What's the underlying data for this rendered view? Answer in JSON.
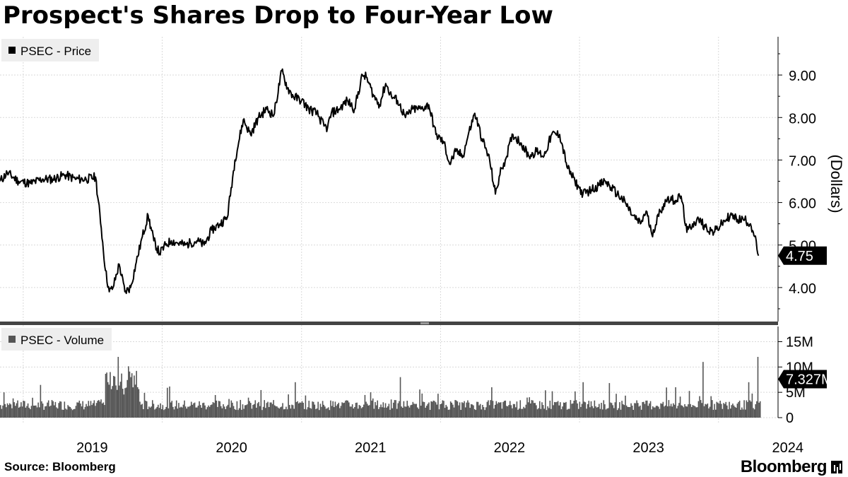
{
  "title": "Prospect's Shares Drop to Four-Year Low",
  "source": "Source: Bloomberg",
  "brand": "Bloomberg",
  "colors": {
    "price_line": "#000000",
    "volume_bars": "#555555",
    "grid": "#d9d9d9",
    "legend_bg": "#eeeeee"
  },
  "chart_data": [
    {
      "type": "line",
      "legend": "PSEC - Price",
      "ylabel": "(Dollars)",
      "ylim": [
        3.2,
        9.9
      ],
      "yticks": [
        4,
        5,
        6,
        7,
        8,
        9
      ],
      "ytick_labels": [
        "4.00",
        "5.00",
        "6.00",
        "7.00",
        "8.00",
        "9.00"
      ],
      "last_value_label": "4.75",
      "last_value": 4.75,
      "grid": true,
      "series": [
        {
          "x": [
            "2018-11-01",
            "2018-11-20",
            "2018-12-20",
            "2019-01-20",
            "2019-02-20",
            "2019-03-20",
            "2019-04-20",
            "2019-05-20",
            "2019-06-15",
            "2019-07-10",
            "2019-07-25",
            "2019-08-05",
            "2019-08-15",
            "2019-08-25",
            "2019-09-10",
            "2019-09-25",
            "2019-10-10",
            "2019-10-25",
            "2019-11-10",
            "2019-11-25",
            "2019-12-10",
            "2019-12-25",
            "2020-01-10",
            "2020-01-25",
            "2020-02-10",
            "2020-03-01",
            "2020-03-15",
            "2020-04-01",
            "2020-04-20",
            "2020-05-10",
            "2020-06-01",
            "2020-06-20",
            "2020-07-10",
            "2020-08-01",
            "2020-08-20",
            "2020-09-10",
            "2020-10-01",
            "2020-10-20",
            "2020-11-10",
            "2020-11-25",
            "2020-12-10",
            "2021-01-01",
            "2021-01-20",
            "2021-02-10",
            "2021-03-01",
            "2021-03-10",
            "2021-03-20",
            "2021-04-10",
            "2021-05-01",
            "2021-05-20",
            "2021-06-10",
            "2021-06-20",
            "2021-07-10",
            "2021-07-25",
            "2021-08-10",
            "2021-08-25",
            "2021-09-10",
            "2021-10-01",
            "2021-10-20",
            "2021-11-10",
            "2021-12-01",
            "2021-12-20",
            "2022-01-10",
            "2022-01-25",
            "2022-02-10",
            "2022-03-01",
            "2022-03-15",
            "2022-04-01",
            "2022-04-20",
            "2022-05-10",
            "2022-05-25",
            "2022-06-10",
            "2022-06-20",
            "2022-07-10",
            "2022-08-01",
            "2022-08-20",
            "2022-09-10",
            "2022-09-30",
            "2022-10-20",
            "2022-11-10",
            "2022-12-01",
            "2022-12-20",
            "2023-01-10",
            "2023-02-01",
            "2023-02-20",
            "2023-03-10",
            "2023-03-25",
            "2023-04-10",
            "2023-05-01",
            "2023-05-20",
            "2023-06-10",
            "2023-06-25",
            "2023-07-10",
            "2023-08-01",
            "2023-08-20",
            "2023-09-10",
            "2023-09-25",
            "2023-10-10",
            "2023-10-25",
            "2023-11-10",
            "2023-12-01",
            "2023-12-20",
            "2024-01-10",
            "2024-02-01",
            "2024-02-20",
            "2024-03-10",
            "2024-03-25",
            "2024-04-05",
            "2024-04-15"
          ],
          "y": [
            6.5,
            6.7,
            6.5,
            6.45,
            6.55,
            6.55,
            6.65,
            6.55,
            6.55,
            6.6,
            5.4,
            4.4,
            3.9,
            4.0,
            4.55,
            3.9,
            4.0,
            4.6,
            5.2,
            5.7,
            5.1,
            4.8,
            5.0,
            5.1,
            5.05,
            5.0,
            5.05,
            5.1,
            5.0,
            5.35,
            5.5,
            5.65,
            7.0,
            7.95,
            7.6,
            8.0,
            8.2,
            8.05,
            9.1,
            8.7,
            8.5,
            8.4,
            8.2,
            8.1,
            7.8,
            7.75,
            8.1,
            8.2,
            8.4,
            8.2,
            9.0,
            8.95,
            8.5,
            8.3,
            8.8,
            8.5,
            8.4,
            8.0,
            8.2,
            8.2,
            8.3,
            7.6,
            7.4,
            6.9,
            7.2,
            7.1,
            7.6,
            8.1,
            7.5,
            7.0,
            6.2,
            6.8,
            7.0,
            7.6,
            7.4,
            7.1,
            7.2,
            7.1,
            7.6,
            7.6,
            6.8,
            6.5,
            6.2,
            6.3,
            6.4,
            6.5,
            6.35,
            6.2,
            6.0,
            5.7,
            5.5,
            5.8,
            5.25,
            5.8,
            6.1,
            6.05,
            6.15,
            5.3,
            5.5,
            5.6,
            5.4,
            5.3,
            5.5,
            5.7,
            5.6,
            5.6,
            5.5,
            5.2,
            4.75
          ]
        }
      ]
    },
    {
      "type": "bar",
      "legend": "PSEC - Volume",
      "ylim": [
        0,
        18000000
      ],
      "yticks": [
        0,
        5000000,
        10000000,
        15000000
      ],
      "ytick_labels": [
        "0",
        "5M",
        "10M",
        "15M"
      ],
      "last_value_label": "7.327M",
      "last_value": 7327000,
      "spikes": [
        {
          "x": "2018-11-10",
          "y": 5000000
        },
        {
          "x": "2019-08-15",
          "y": 9000000
        },
        {
          "x": "2019-09-05",
          "y": 12000000
        },
        {
          "x": "2019-10-10",
          "y": 8000000
        },
        {
          "x": "2020-12-15",
          "y": 7000000
        },
        {
          "x": "2021-09-15",
          "y": 8000000
        },
        {
          "x": "2022-05-15",
          "y": 6000000
        },
        {
          "x": "2023-01-10",
          "y": 7000000
        },
        {
          "x": "2023-09-10",
          "y": 6000000
        },
        {
          "x": "2023-11-20",
          "y": 11000000
        },
        {
          "x": "2024-03-20",
          "y": 7000000
        },
        {
          "x": "2024-04-12",
          "y": 12000000
        }
      ]
    }
  ],
  "x_axis": {
    "labels": [
      "2019",
      "2020",
      "2021",
      "2022",
      "2023",
      "2024"
    ],
    "start": "2018-11-01",
    "end": "2024-04-20"
  }
}
